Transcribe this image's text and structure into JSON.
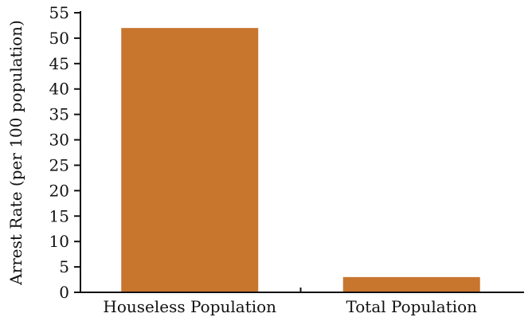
{
  "chart_data": {
    "type": "bar",
    "categories": [
      "Houseless Population",
      "Total Population"
    ],
    "values": [
      52,
      3
    ],
    "title": "",
    "xlabel": "",
    "ylabel": "Arrest Rate (per 100 population)",
    "ylim": [
      0,
      55
    ],
    "yticks": [
      "0",
      "5",
      "10",
      "15",
      "20",
      "25",
      "30",
      "35",
      "40",
      "45",
      "50",
      "55"
    ],
    "grid": false,
    "bar_color": "#C8752E"
  }
}
